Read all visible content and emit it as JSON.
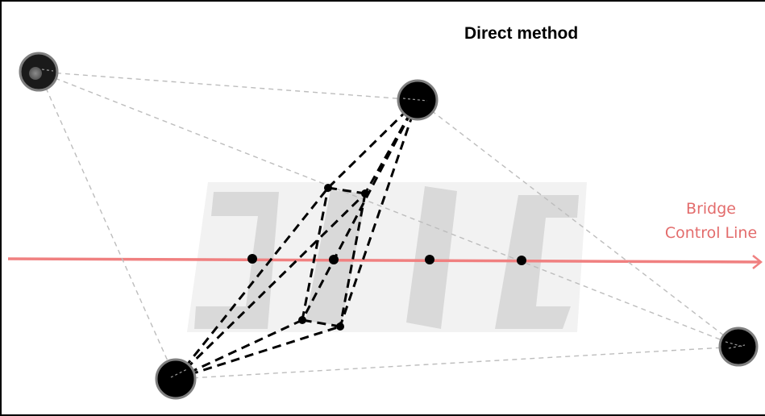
{
  "title": "Direct method",
  "bridge_label": {
    "line1": "Bridge",
    "line2": "Control Line"
  },
  "colors": {
    "control_line": "#f08080",
    "bridge_label": "#e36c6c",
    "pier_fill": "#d9d9d9",
    "pier_bg": "#f2f2f2",
    "thin_dash": "#bdbdbd",
    "thick_dash": "#000000",
    "station": "#000000"
  }
}
